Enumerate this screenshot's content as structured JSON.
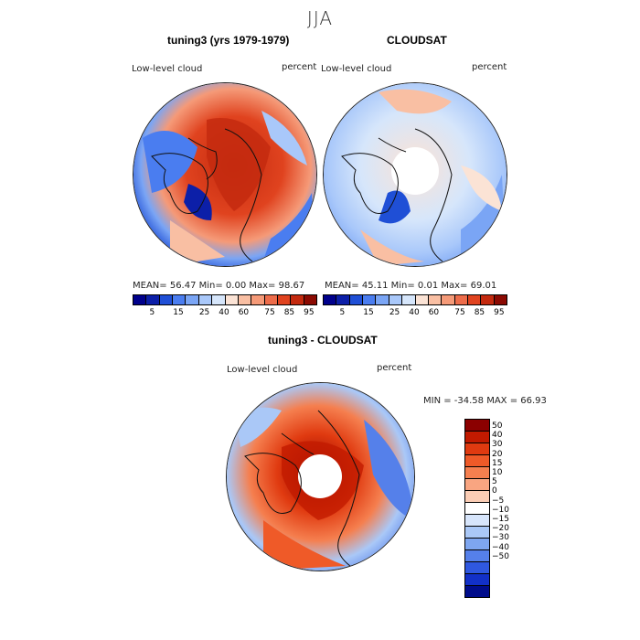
{
  "title": "JJA",
  "panel_model": {
    "title": "tuning3 (yrs 1979-1979)",
    "variable": "Low-level cloud",
    "units": "percent",
    "stats": "MEAN=   56.47   Min=    0.00   Max=   98.67"
  },
  "panel_obs": {
    "title": "CLOUDSAT",
    "variable": "Low-level cloud",
    "units": "percent",
    "stats": "MEAN=   45.11   Min=    0.01   Max=   69.01"
  },
  "panel_diff": {
    "title": "tuning3 - CLOUDSAT",
    "variable": "Low-level cloud",
    "units": "percent",
    "stats": "MIN = -34.58  MAX =   66.93"
  },
  "colorbar_abs": {
    "colors": [
      "#00008b",
      "#0c1fa8",
      "#1f4fd6",
      "#4a7df0",
      "#7aa5f5",
      "#a9c8fa",
      "#d6e6fb",
      "#fbe3d5",
      "#f9bfa3",
      "#f59a78",
      "#ed6c4a",
      "#e0431f",
      "#c42a0f",
      "#8b0a02"
    ],
    "ticks": [
      "5",
      "15",
      "25",
      "40",
      "60",
      "75",
      "85",
      "95"
    ]
  },
  "colorbar_diff": {
    "colors": [
      "#8b0000",
      "#c21a00",
      "#e03a10",
      "#ef5a28",
      "#f57f4f",
      "#f9a581",
      "#fbcdb5",
      "#ffffff",
      "#d7e5fb",
      "#aac8f7",
      "#7ea6f0",
      "#5580ea",
      "#2f58e0",
      "#1230c8",
      "#000c8b"
    ],
    "ticks": [
      "50",
      "40",
      "30",
      "20",
      "15",
      "10",
      "5",
      "0",
      "−5",
      "−10",
      "−15",
      "−20",
      "−30",
      "−40",
      "−50"
    ]
  }
}
